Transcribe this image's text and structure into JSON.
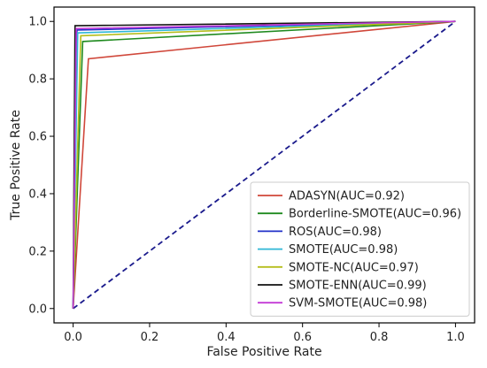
{
  "chart_data": {
    "type": "line",
    "title": "",
    "xlabel": "False Positive Rate",
    "ylabel": "True Positive Rate",
    "xlim": [
      -0.05,
      1.05
    ],
    "ylim": [
      -0.05,
      1.05
    ],
    "xticks": [
      "0.0",
      "0.2",
      "0.4",
      "0.6",
      "0.8",
      "1.0"
    ],
    "yticks": [
      "0.0",
      "0.2",
      "0.4",
      "0.6",
      "0.8",
      "1.0"
    ],
    "grid": false,
    "legend_position": "lower-right",
    "series": [
      {
        "name": "ADASYN(AUC=0.92)",
        "color": "#d0473a",
        "x": [
          0,
          0.04,
          1
        ],
        "y": [
          0,
          0.87,
          1
        ]
      },
      {
        "name": "Borderline-SMOTE(AUC=0.96)",
        "color": "#1f8a1f",
        "x": [
          0,
          0.025,
          1
        ],
        "y": [
          0,
          0.93,
          1
        ]
      },
      {
        "name": "ROS(AUC=0.98)",
        "color": "#2130c8",
        "x": [
          0,
          0.01,
          1
        ],
        "y": [
          0,
          0.97,
          1
        ]
      },
      {
        "name": "SMOTE(AUC=0.98)",
        "color": "#2fb7d6",
        "x": [
          0,
          0.012,
          1
        ],
        "y": [
          0,
          0.96,
          1
        ]
      },
      {
        "name": "SMOTE-NC(AUC=0.97)",
        "color": "#b5bd1c",
        "x": [
          0,
          0.02,
          1
        ],
        "y": [
          0,
          0.95,
          1
        ]
      },
      {
        "name": "SMOTE-ENN(AUC=0.99)",
        "color": "#111111",
        "x": [
          0,
          0.005,
          1
        ],
        "y": [
          0,
          0.985,
          1
        ]
      },
      {
        "name": "SVM-SMOTE(AUC=0.98)",
        "color": "#c43ad6",
        "x": [
          0,
          0.008,
          1
        ],
        "y": [
          0,
          0.975,
          1
        ]
      }
    ],
    "reference_line": {
      "color": "#1a1a8c",
      "style": "dashed",
      "x": [
        0,
        1
      ],
      "y": [
        0,
        1
      ]
    }
  }
}
